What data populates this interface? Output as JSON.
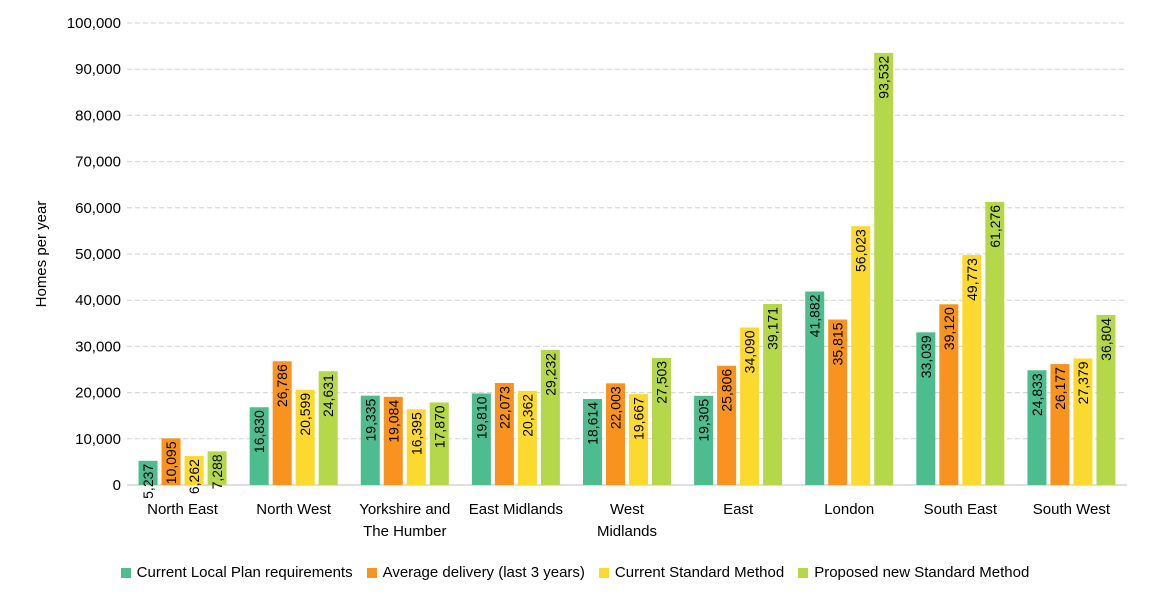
{
  "chart_data": {
    "type": "bar",
    "ylabel": "Homes per year",
    "xlabel": "",
    "ylim": [
      0,
      100000
    ],
    "yticks": [
      "0",
      "10,000",
      "20,000",
      "30,000",
      "40,000",
      "50,000",
      "60,000",
      "70,000",
      "80,000",
      "90,000",
      "100,000"
    ],
    "grid": true,
    "legend_position": "bottom",
    "categories": [
      [
        "North East"
      ],
      [
        "North West"
      ],
      [
        "Yorkshire and",
        "The Humber"
      ],
      [
        "East Midlands"
      ],
      [
        "West",
        "Midlands"
      ],
      [
        "East"
      ],
      [
        "London"
      ],
      [
        "South East"
      ],
      [
        "South West"
      ]
    ],
    "series": [
      {
        "name": "Current Local Plan requirements",
        "color": "#4dbd8f",
        "values": [
          5237,
          16830,
          19335,
          19810,
          18614,
          19305,
          41882,
          33039,
          24833
        ],
        "labels": [
          "5,237",
          "16,830",
          "19,335",
          "19,810",
          "18,614",
          "19,305",
          "41,882",
          "33,039",
          "24,833"
        ]
      },
      {
        "name": "Average delivery (last 3 years)",
        "color": "#f7931e",
        "values": [
          10095,
          26786,
          19084,
          22073,
          22003,
          25806,
          35815,
          39120,
          26177
        ],
        "labels": [
          "10,095",
          "26,786",
          "19,084",
          "22,073",
          "22,003",
          "25,806",
          "35,815",
          "39,120",
          "26,177"
        ]
      },
      {
        "name": "Current Standard Method",
        "color": "#fcd92f",
        "values": [
          6262,
          20599,
          16395,
          20362,
          19667,
          34090,
          56023,
          49773,
          27379
        ],
        "labels": [
          "6,262",
          "20,599",
          "16,395",
          "20,362",
          "19,667",
          "34,090",
          "56,023",
          "49,773",
          "27,379"
        ]
      },
      {
        "name": "Proposed new Standard Method",
        "color": "#b5d84a",
        "values": [
          7288,
          24631,
          17870,
          29232,
          27503,
          39171,
          93532,
          61276,
          36804
        ],
        "labels": [
          "7,288",
          "24,631",
          "17,870",
          "29,232",
          "27,503",
          "39,171",
          "93,532",
          "61,276",
          "36,804"
        ]
      }
    ]
  }
}
